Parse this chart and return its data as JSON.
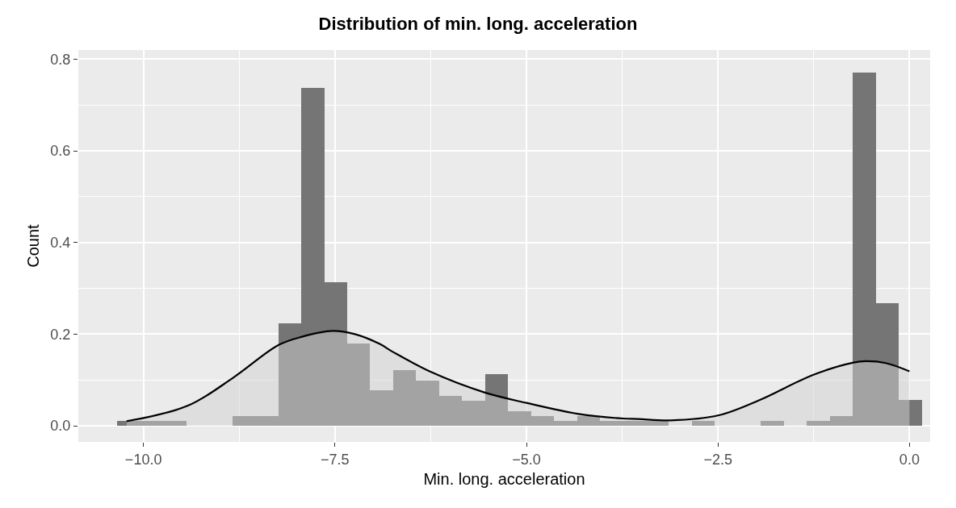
{
  "chart_data": {
    "type": "histogram",
    "title": "Distribution of min. long. acceleration",
    "xlabel": "Min. long. acceleration",
    "ylabel": "Count",
    "bins": [
      -10.34,
      -10.04,
      -9.74,
      -9.44,
      -9.14,
      -8.84,
      -8.54,
      -8.24,
      -7.94,
      -7.64,
      -7.34,
      -7.04,
      -6.74,
      -6.44,
      -6.14,
      -5.84,
      -5.54,
      -5.24,
      -4.94,
      -4.64,
      -4.34,
      -4.04,
      -3.74,
      -3.44,
      -3.14,
      -2.84,
      -2.54,
      -2.24,
      -1.94,
      -1.64,
      -1.34,
      -1.04,
      -0.74,
      -0.44,
      -0.14,
      0.16
    ],
    "values": [
      0.011,
      0.011,
      0.011,
      0,
      0,
      0.022,
      0.022,
      0.223,
      0.737,
      0.313,
      0.179,
      0.078,
      0.122,
      0.099,
      0.066,
      0.055,
      0.112,
      0.032,
      0.022,
      0.011,
      0.022,
      0.011,
      0.011,
      0.011,
      0,
      0.011,
      0,
      0,
      0.011,
      0,
      0.011,
      0.022,
      0.771,
      0.268,
      0.056
    ],
    "color": "#757575",
    "series": [
      {
        "type": "area",
        "color": "#000000",
        "x": [
          -10.22,
          -9.42,
          -8.82,
          -8.24,
          -7.94,
          -7.53,
          -7.24,
          -6.92,
          -6.74,
          -6.24,
          -5.55,
          -5.0,
          -4.32,
          -3.74,
          -3.54,
          -3.12,
          -2.49,
          -1.96,
          -1.26,
          -0.73,
          -0.57,
          -0.31,
          0.0
        ],
        "values": [
          0.01,
          0.044,
          0.106,
          0.176,
          0.194,
          0.207,
          0.2,
          0.179,
          0.161,
          0.117,
          0.073,
          0.05,
          0.026,
          0.016,
          0.015,
          0.012,
          0.023,
          0.056,
          0.111,
          0.138,
          0.141,
          0.137,
          0.119
        ]
      }
    ],
    "xlim": [
      -10.85,
      0.27
    ],
    "ylim": [
      -0.035,
      0.82
    ],
    "xticks": [
      {
        "value": -10,
        "label": "−10.0"
      },
      {
        "value": -7.5,
        "label": "−7.5"
      },
      {
        "value": -5,
        "label": "−5.0"
      },
      {
        "value": -2.5,
        "label": "−2.5"
      },
      {
        "value": 0,
        "label": "0.0"
      }
    ],
    "yticks": [
      {
        "value": 0,
        "label": "0.0"
      },
      {
        "value": 0.2,
        "label": "0.2"
      },
      {
        "value": 0.4,
        "label": "0.4"
      },
      {
        "value": 0.6,
        "label": "0.6"
      },
      {
        "value": 0.8,
        "label": "0.8"
      }
    ],
    "grid": true
  }
}
